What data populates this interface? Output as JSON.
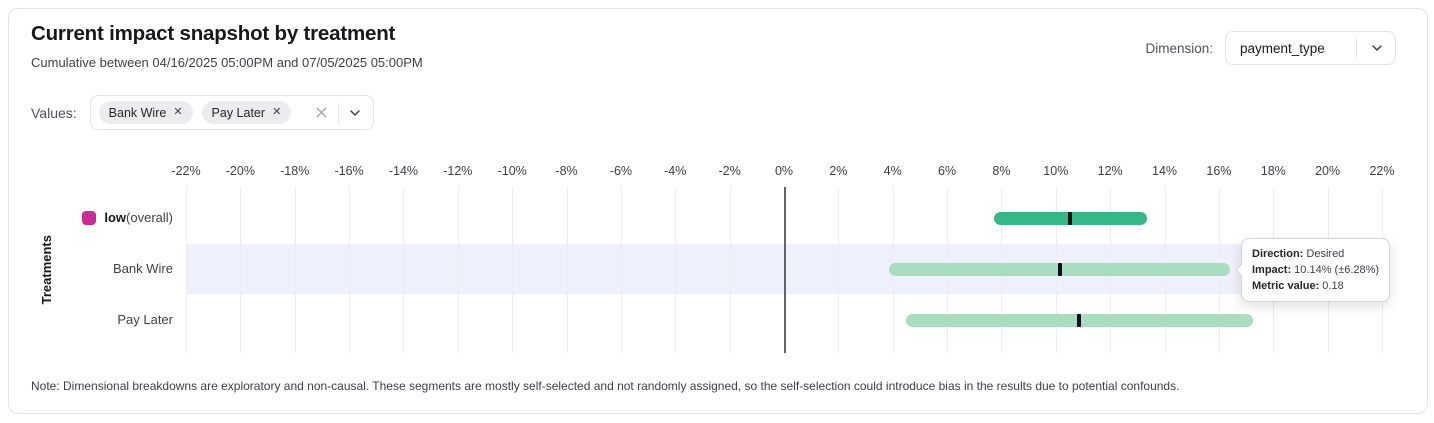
{
  "card": {
    "title": "Current impact snapshot by treatment",
    "subtitle": "Cumulative between 04/16/2025 05:00PM and 07/05/2025 05:00PM",
    "note": "Note: Dimensional breakdowns are exploratory and non-causal. These segments are mostly self-selected and not randomly assigned, so the self-selection could introduce bias in the results due to potential confounds."
  },
  "dimension_control": {
    "label": "Dimension:",
    "value": "payment_type"
  },
  "values_control": {
    "label": "Values:",
    "chips": [
      {
        "label": "Bank Wire"
      },
      {
        "label": "Pay Later"
      }
    ]
  },
  "chart_data": {
    "type": "bar",
    "subtype": "horizontal-confidence-interval",
    "title": "Current impact snapshot by treatment",
    "xlabel": "",
    "ylabel": "Treatments",
    "axis": {
      "tick_min": -22,
      "tick_max": 22,
      "tick_step": 2,
      "unit": "%"
    },
    "xlim": [
      -22,
      22
    ],
    "grid": true,
    "marker_color": "#101014",
    "rows": [
      {
        "label_bold": "low",
        "label_suffix": " (overall)",
        "legend_color": "#cb2a96",
        "impact_pct": 10.54,
        "ci_pct": 2.83,
        "bar_color": "#35b787",
        "highlighted": false
      },
      {
        "label": "Bank Wire",
        "impact_pct": 10.14,
        "ci_pct": 6.28,
        "bar_color": "#a9dcc1",
        "highlighted": true
      },
      {
        "label": "Pay Later",
        "impact_pct": 10.87,
        "ci_pct": 6.38,
        "bar_color": "#a9dcc1",
        "highlighted": false
      }
    ]
  },
  "tooltip": {
    "rows": [
      {
        "label": "Direction:",
        "value": "Desired"
      },
      {
        "label": "Impact:",
        "value": "10.14% (±6.28%)"
      },
      {
        "label": "Metric value:",
        "value": "0.18"
      }
    ]
  }
}
